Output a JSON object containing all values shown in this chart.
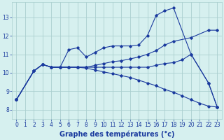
{
  "background_color": "#d6f0ef",
  "grid_color": "#aacfcf",
  "line_color": "#1a3a9e",
  "xlabel": "Graphe des températures (°c)",
  "xlabel_fontsize": 7,
  "xlim": [
    -0.5,
    23.5
  ],
  "ylim": [
    7.5,
    13.8
  ],
  "yticks": [
    8,
    9,
    10,
    11,
    12,
    13
  ],
  "xticks": [
    0,
    1,
    2,
    3,
    4,
    5,
    6,
    7,
    8,
    9,
    10,
    11,
    12,
    13,
    14,
    15,
    16,
    17,
    18,
    19,
    20,
    21,
    22,
    23
  ],
  "series": [
    {
      "x": [
        0,
        2,
        3,
        4,
        5,
        6,
        7,
        8,
        9,
        10,
        11,
        12,
        13,
        14,
        15,
        16,
        17,
        18,
        20,
        22,
        23
      ],
      "y": [
        8.55,
        10.1,
        10.45,
        10.3,
        10.3,
        10.3,
        10.3,
        10.3,
        10.4,
        10.5,
        10.6,
        10.65,
        10.75,
        10.85,
        11.0,
        11.2,
        11.5,
        11.7,
        11.9,
        12.3,
        12.3
      ]
    },
    {
      "x": [
        0,
        2,
        3,
        4,
        5,
        6,
        7,
        8,
        9,
        10,
        11,
        12,
        13,
        14,
        15,
        16,
        17,
        18,
        20,
        22,
        23
      ],
      "y": [
        8.55,
        10.1,
        10.45,
        10.3,
        10.3,
        11.25,
        11.35,
        10.85,
        11.1,
        11.35,
        11.45,
        11.45,
        11.45,
        11.5,
        12.0,
        13.1,
        13.35,
        13.5,
        11.0,
        9.45,
        8.15
      ]
    },
    {
      "x": [
        0,
        2,
        3,
        4,
        5,
        6,
        7,
        8,
        9,
        10,
        11,
        12,
        13,
        14,
        15,
        16,
        17,
        18,
        19,
        20,
        22,
        23
      ],
      "y": [
        8.55,
        10.1,
        10.45,
        10.3,
        10.3,
        10.3,
        10.3,
        10.3,
        10.3,
        10.3,
        10.3,
        10.3,
        10.3,
        10.3,
        10.3,
        10.4,
        10.5,
        10.55,
        10.7,
        11.0,
        9.45,
        8.15
      ]
    },
    {
      "x": [
        0,
        2,
        3,
        4,
        5,
        6,
        7,
        8,
        9,
        10,
        11,
        12,
        13,
        14,
        15,
        16,
        17,
        18,
        19,
        20,
        21,
        22,
        23
      ],
      "y": [
        8.55,
        10.1,
        10.45,
        10.3,
        10.3,
        10.3,
        10.3,
        10.25,
        10.15,
        10.05,
        9.95,
        9.85,
        9.75,
        9.6,
        9.45,
        9.3,
        9.1,
        8.95,
        8.75,
        8.55,
        8.35,
        8.2,
        8.15
      ]
    }
  ]
}
